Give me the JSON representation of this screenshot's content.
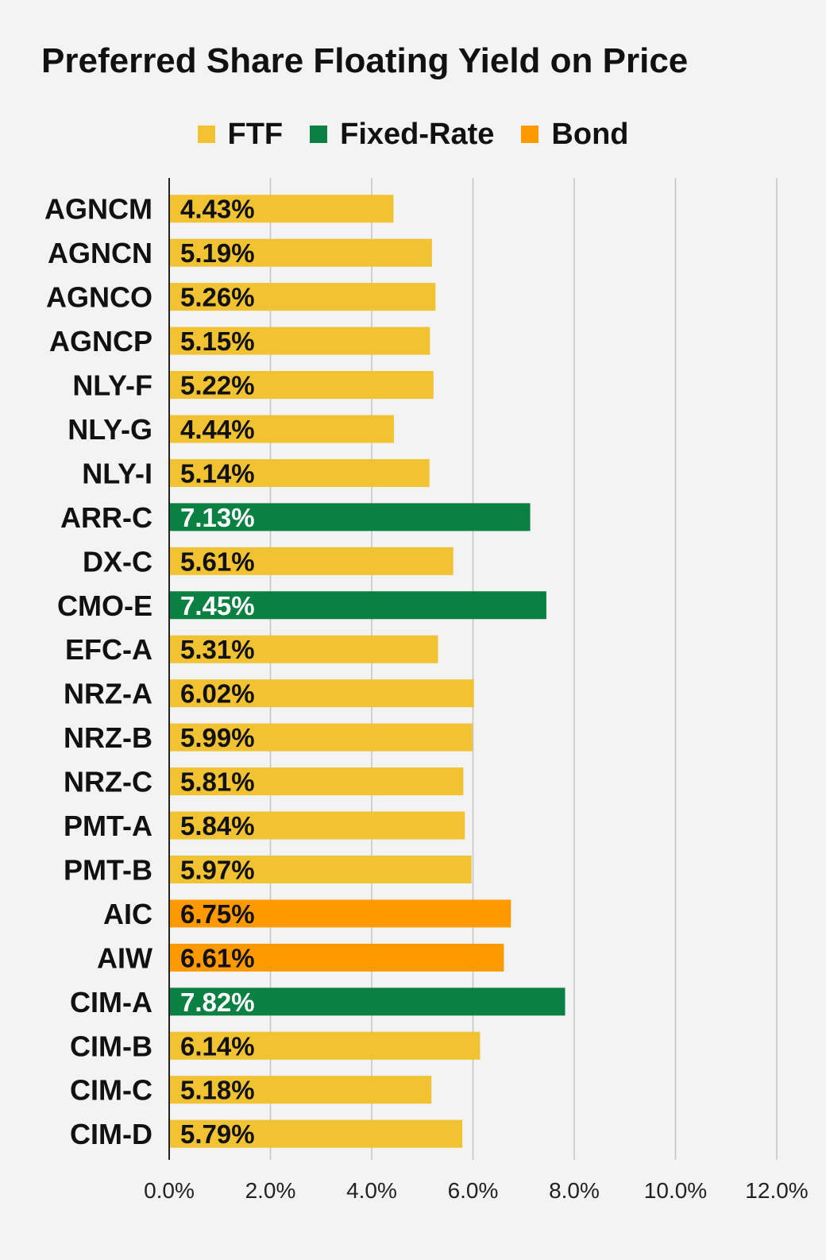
{
  "chart_data": {
    "type": "bar",
    "orientation": "horizontal",
    "title": "Preferred Share Floating Yield on Price",
    "xlim": [
      0,
      12
    ],
    "x_ticks": [
      "0.0%",
      "2.0%",
      "4.0%",
      "6.0%",
      "8.0%",
      "10.0%",
      "12.0%"
    ],
    "grid": true,
    "legend_position": "top",
    "legend": [
      {
        "name": "FTF",
        "color": "#f1c232"
      },
      {
        "name": "Fixed-Rate",
        "color": "#0b8043"
      },
      {
        "name": "Bond",
        "color": "#ff9900"
      }
    ],
    "categories": [
      "AGNCM",
      "AGNCN",
      "AGNCO",
      "AGNCP",
      "NLY-F",
      "NLY-G",
      "NLY-I",
      "ARR-C",
      "DX-C",
      "CMO-E",
      "EFC-A",
      "NRZ-A",
      "NRZ-B",
      "NRZ-C",
      "PMT-A",
      "PMT-B",
      "AIC",
      "AIW",
      "CIM-A",
      "CIM-B",
      "CIM-C",
      "CIM-D"
    ],
    "values": [
      4.43,
      5.19,
      5.26,
      5.15,
      5.22,
      4.44,
      5.14,
      7.13,
      5.61,
      7.45,
      5.31,
      6.02,
      5.99,
      5.81,
      5.84,
      5.97,
      6.75,
      6.61,
      7.82,
      6.14,
      5.18,
      5.79
    ],
    "labels": [
      "4.43%",
      "5.19%",
      "5.26%",
      "5.15%",
      "5.22%",
      "4.44%",
      "5.14%",
      "7.13%",
      "5.61%",
      "7.45%",
      "5.31%",
      "6.02%",
      "5.99%",
      "5.81%",
      "5.84%",
      "5.97%",
      "6.75%",
      "6.61%",
      "7.82%",
      "6.14%",
      "5.18%",
      "5.79%"
    ],
    "series_index": [
      0,
      0,
      0,
      0,
      0,
      0,
      0,
      1,
      0,
      1,
      0,
      0,
      0,
      0,
      0,
      0,
      2,
      2,
      1,
      0,
      0,
      0
    ]
  }
}
